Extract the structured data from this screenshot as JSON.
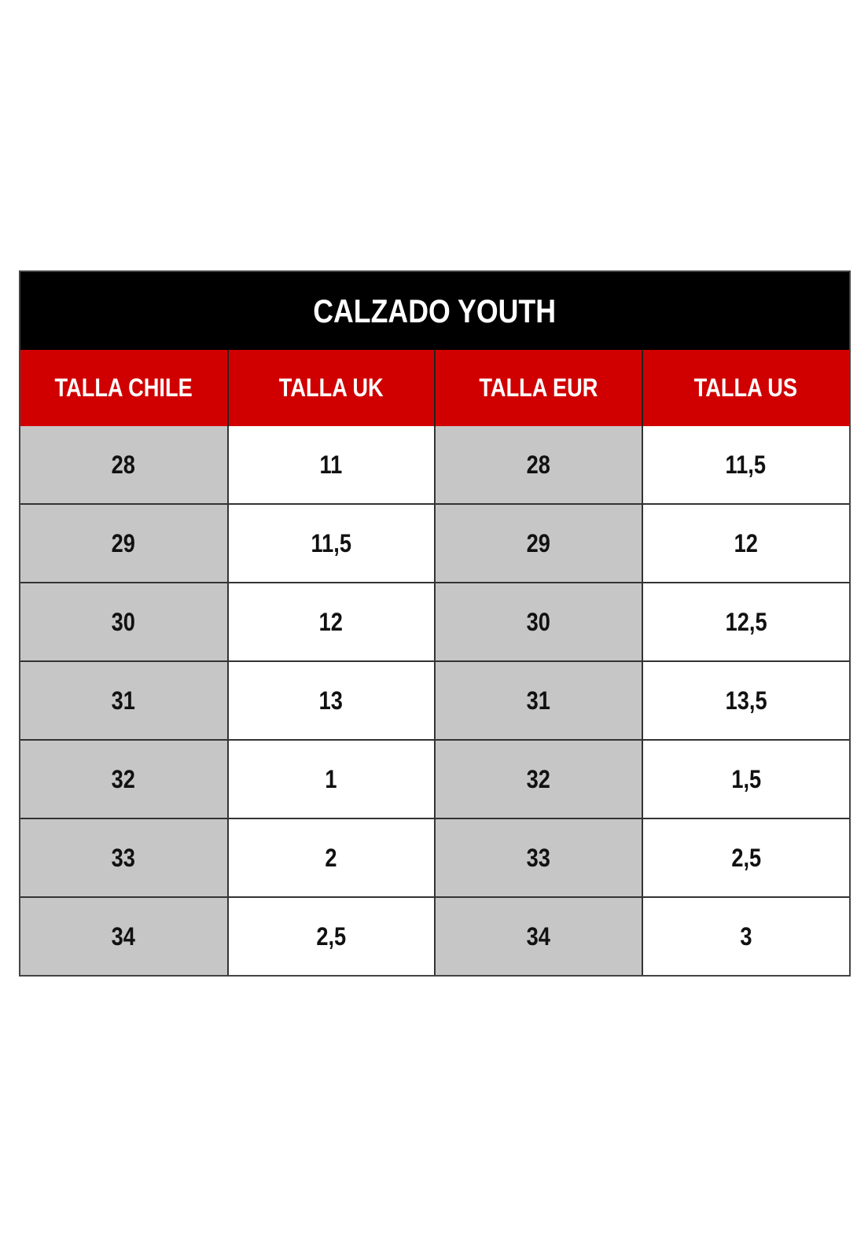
{
  "title": "CALZADO YOUTH",
  "colors": {
    "title_bg": "#000000",
    "header_bg": "#d10000",
    "shaded_column": "#c6c6c6"
  },
  "headers": [
    "TALLA CHILE",
    "TALLA UK",
    "TALLA EUR",
    "TALLA US"
  ],
  "rows": [
    [
      "28",
      "11",
      "28",
      "11,5"
    ],
    [
      "29",
      "11,5",
      "29",
      "12"
    ],
    [
      "30",
      "12",
      "30",
      "12,5"
    ],
    [
      "31",
      "13",
      "31",
      "13,5"
    ],
    [
      "32",
      "1",
      "32",
      "1,5"
    ],
    [
      "33",
      "2",
      "33",
      "2,5"
    ],
    [
      "34",
      "2,5",
      "34",
      "3"
    ]
  ]
}
